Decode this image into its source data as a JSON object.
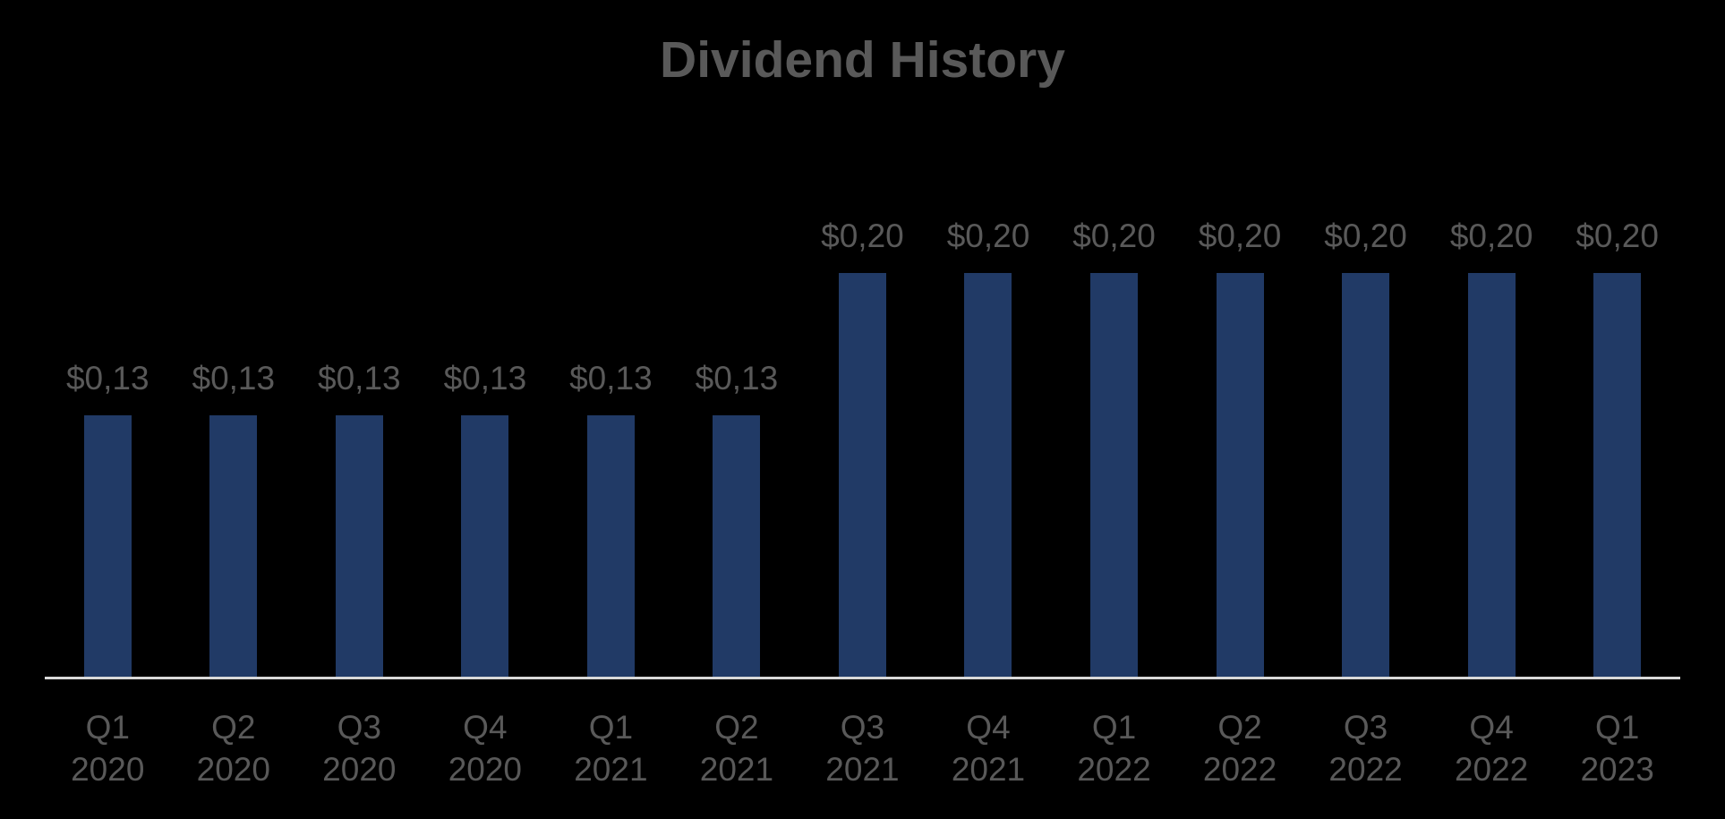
{
  "chart": {
    "title": "Dividend History",
    "colors": {
      "background": "#000000",
      "bar": "#213A66",
      "text": "#595959",
      "axis_line": "#D9D9D9"
    }
  },
  "chart_data": {
    "type": "bar",
    "title": "Dividend History",
    "categories": [
      "Q1 2020",
      "Q2 2020",
      "Q3 2020",
      "Q4 2020",
      "Q1 2021",
      "Q2 2021",
      "Q3 2021",
      "Q4 2021",
      "Q1 2022",
      "Q2 2022",
      "Q3 2022",
      "Q4 2022",
      "Q1 2023"
    ],
    "tick_lines": [
      [
        "Q1",
        "2020"
      ],
      [
        "Q2",
        "2020"
      ],
      [
        "Q3",
        "2020"
      ],
      [
        "Q4",
        "2020"
      ],
      [
        "Q1",
        "2021"
      ],
      [
        "Q2",
        "2021"
      ],
      [
        "Q3",
        "2021"
      ],
      [
        "Q4",
        "2021"
      ],
      [
        "Q1",
        "2022"
      ],
      [
        "Q2",
        "2022"
      ],
      [
        "Q3",
        "2022"
      ],
      [
        "Q4",
        "2022"
      ],
      [
        "Q1",
        "2023"
      ]
    ],
    "values": [
      0.13,
      0.13,
      0.13,
      0.13,
      0.13,
      0.13,
      0.2,
      0.2,
      0.2,
      0.2,
      0.2,
      0.2,
      0.2
    ],
    "value_labels": [
      "$0,13",
      "$0,13",
      "$0,13",
      "$0,13",
      "$0,13",
      "$0,13",
      "$0,20",
      "$0,20",
      "$0,20",
      "$0,20",
      "$0,20",
      "$0,20",
      "$0,20"
    ],
    "xlabel": "",
    "ylabel": "",
    "ylim": [
      0,
      0.25
    ],
    "grid": false,
    "y_axis_visible": false,
    "legend_position": "none",
    "data_labels": true
  }
}
